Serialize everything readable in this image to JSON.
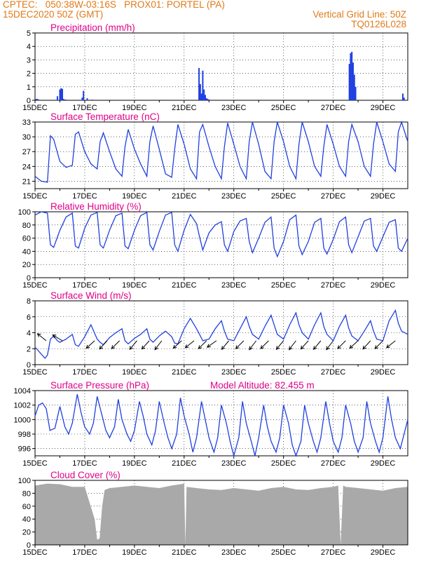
{
  "header": {
    "line1_left": "CPTEC:   050:38W-03:16S   PROX01: PORTEL (PA)",
    "line2_left": "15DEC2020 50Z (GMT)",
    "line2_right": "Vertical Grid Line: 50Z",
    "line3_right": "TQ0126L028"
  },
  "colors": {
    "header_text": "#e07a18",
    "title_text": "#e0008a",
    "series_line": "#2040e0",
    "cloud_fill": "#a9a9a9",
    "grid": "#000000"
  },
  "x_axis": {
    "day_min": 0,
    "day_max": 15,
    "tick_labels": [
      "15DEC",
      "17DEC",
      "19DEC",
      "21DEC",
      "23DEC",
      "25DEC",
      "27DEC",
      "29DEC"
    ],
    "tick_days": [
      0,
      2,
      4,
      6,
      8,
      10,
      12,
      14
    ]
  },
  "model_altitude": "Model Altitude: 82.455 m",
  "chart_data": [
    {
      "id": "precip",
      "type": "bar",
      "title": "Precipitation (mm/h)",
      "ylim": [
        0,
        5
      ],
      "yticks": [
        0,
        1,
        2,
        3,
        4,
        5
      ],
      "ytick_labels": [
        "0",
        "1",
        "2",
        "3",
        "4",
        "5"
      ],
      "x_days": [
        0.05,
        0.1,
        0.15,
        0.9,
        1.0,
        1.05,
        1.1,
        1.15,
        1.2,
        1.25,
        1.9,
        1.95,
        2.1,
        2.3,
        6.6,
        6.65,
        6.7,
        6.75,
        6.8,
        6.85,
        6.9,
        6.95,
        7.0,
        12.65,
        12.7,
        12.75,
        12.8,
        12.85,
        12.9,
        14.8,
        14.85
      ],
      "values": [
        0.1,
        0.1,
        0.05,
        0.3,
        0.8,
        0.9,
        0.85,
        0.1,
        0.05,
        0.05,
        0.2,
        0.7,
        0.15,
        0.05,
        2.4,
        1.2,
        0.5,
        2.2,
        0.8,
        0.4,
        0.15,
        0.1,
        0.05,
        2.7,
        3.5,
        3.6,
        2.8,
        1.9,
        1.0,
        0.5,
        0.2
      ]
    },
    {
      "id": "temp",
      "type": "line",
      "title": "Surface Temperature (nC)",
      "ylim": [
        19.5,
        33
      ],
      "yticks": [
        21,
        24,
        27,
        30,
        33
      ],
      "ytick_labels": [
        "21",
        "24",
        "27",
        "30",
        "33"
      ],
      "x_days": [
        0,
        0.25,
        0.5,
        0.62,
        0.75,
        1.0,
        1.25,
        1.5,
        1.62,
        1.75,
        2.0,
        2.25,
        2.5,
        2.62,
        2.75,
        3.0,
        3.25,
        3.5,
        3.62,
        3.75,
        4.0,
        4.25,
        4.5,
        4.62,
        4.75,
        5.0,
        5.25,
        5.5,
        5.62,
        5.75,
        6.0,
        6.25,
        6.5,
        6.62,
        6.75,
        7.0,
        7.25,
        7.5,
        7.62,
        7.75,
        8.0,
        8.25,
        8.5,
        8.62,
        8.75,
        9.0,
        9.25,
        9.5,
        9.62,
        9.75,
        10.0,
        10.25,
        10.5,
        10.62,
        10.75,
        11.0,
        11.25,
        11.5,
        11.62,
        11.75,
        12.0,
        12.25,
        12.5,
        12.62,
        12.75,
        13.0,
        13.25,
        13.5,
        13.62,
        13.75,
        14.0,
        14.25,
        14.5,
        14.62,
        14.75,
        15.0
      ],
      "values": [
        22,
        21,
        20.8,
        30.2,
        29.5,
        25,
        23.8,
        24.2,
        30.5,
        31,
        27,
        24.5,
        23.5,
        29,
        30.8,
        27,
        23.5,
        22,
        28,
        31.5,
        27.5,
        24.5,
        22,
        29,
        32.2,
        27.5,
        22.5,
        21.8,
        27.5,
        32.5,
        28.5,
        23.5,
        21.5,
        31,
        32.5,
        28,
        24,
        21.5,
        28,
        32.8,
        28.5,
        24,
        21.5,
        29,
        33,
        28.5,
        23,
        21.5,
        29,
        33.2,
        29,
        24,
        21.5,
        28.5,
        33.2,
        29,
        24,
        22,
        28,
        32.5,
        28.5,
        24,
        22,
        29,
        32.5,
        29,
        24,
        22,
        28.5,
        33,
        29,
        24.5,
        23,
        31,
        33.2,
        29
      ]
    },
    {
      "id": "rh",
      "type": "line",
      "title": "Relative Humidity (%)",
      "ylim": [
        0,
        100
      ],
      "yticks": [
        0,
        20,
        40,
        60,
        80,
        100
      ],
      "ytick_labels": [
        "0",
        "20",
        "40",
        "60",
        "80",
        "100"
      ],
      "x_days": [
        0,
        0.25,
        0.5,
        0.62,
        0.75,
        1.0,
        1.25,
        1.5,
        1.62,
        1.75,
        2.0,
        2.25,
        2.5,
        2.62,
        2.75,
        3.0,
        3.25,
        3.5,
        3.62,
        3.75,
        4.0,
        4.25,
        4.5,
        4.62,
        4.75,
        5.0,
        5.25,
        5.5,
        5.62,
        5.75,
        6.0,
        6.25,
        6.5,
        6.62,
        6.75,
        7.0,
        7.25,
        7.5,
        7.62,
        7.75,
        8.0,
        8.25,
        8.5,
        8.62,
        8.75,
        9.0,
        9.25,
        9.5,
        9.62,
        9.75,
        10.0,
        10.25,
        10.5,
        10.62,
        10.75,
        11.0,
        11.25,
        11.5,
        11.62,
        11.75,
        12.0,
        12.25,
        12.5,
        12.62,
        12.75,
        13.0,
        13.25,
        13.5,
        13.62,
        13.75,
        14.0,
        14.25,
        14.5,
        14.62,
        14.75,
        15.0
      ],
      "values": [
        95,
        100,
        98,
        50,
        46,
        72,
        92,
        98,
        48,
        45,
        75,
        95,
        99,
        50,
        45,
        72,
        94,
        98,
        48,
        44,
        72,
        94,
        99,
        50,
        42,
        70,
        95,
        99,
        50,
        40,
        72,
        96,
        82,
        62,
        42,
        68,
        80,
        85,
        50,
        40,
        70,
        86,
        90,
        55,
        38,
        60,
        84,
        92,
        45,
        32,
        55,
        88,
        95,
        48,
        35,
        55,
        84,
        90,
        45,
        36,
        58,
        85,
        92,
        50,
        38,
        62,
        86,
        90,
        48,
        40,
        62,
        84,
        88,
        45,
        40,
        60
      ]
    },
    {
      "id": "wind",
      "type": "line",
      "title": "Surface Wind (m/s)",
      "ylim": [
        0,
        8
      ],
      "yticks": [
        0,
        2,
        4,
        6,
        8
      ],
      "ytick_labels": [
        "0",
        "2",
        "4",
        "6",
        "8"
      ],
      "x_days": [
        0,
        0.2,
        0.4,
        0.5,
        0.62,
        0.75,
        0.9,
        1.0,
        1.25,
        1.5,
        1.62,
        1.75,
        2.0,
        2.25,
        2.5,
        2.62,
        2.75,
        3.0,
        3.25,
        3.5,
        3.62,
        3.75,
        4.0,
        4.25,
        4.5,
        4.62,
        4.75,
        5.0,
        5.25,
        5.5,
        5.62,
        5.75,
        6.0,
        6.25,
        6.5,
        6.62,
        6.75,
        7.0,
        7.25,
        7.5,
        7.62,
        7.75,
        8.0,
        8.25,
        8.5,
        8.62,
        8.75,
        9.0,
        9.25,
        9.5,
        9.62,
        9.75,
        10.0,
        10.25,
        10.5,
        10.62,
        10.75,
        11.0,
        11.25,
        11.5,
        11.62,
        11.75,
        12.0,
        12.25,
        12.5,
        12.62,
        12.75,
        13.0,
        13.25,
        13.5,
        13.62,
        13.75,
        14.0,
        14.25,
        14.5,
        14.62,
        14.75,
        15.0
      ],
      "values": [
        2.2,
        1.5,
        0.8,
        1.2,
        3.2,
        3.6,
        3.0,
        2.8,
        3.2,
        3.8,
        2.5,
        2.3,
        3.5,
        5.0,
        3.2,
        2.8,
        2.5,
        3.4,
        4.0,
        4.5,
        3.0,
        2.6,
        3.3,
        3.8,
        4.5,
        3.2,
        2.8,
        3.6,
        4.2,
        3.5,
        2.7,
        2.6,
        4.5,
        5.8,
        4.5,
        3.8,
        3.0,
        3.2,
        4.5,
        5.5,
        4.2,
        3.2,
        3.0,
        4.5,
        6.0,
        4.8,
        3.8,
        3.2,
        4.8,
        6.2,
        5.0,
        3.8,
        3.2,
        5.0,
        6.5,
        5.0,
        4.0,
        3.2,
        5.0,
        6.5,
        4.8,
        3.8,
        3.0,
        4.8,
        6.2,
        4.6,
        3.6,
        3.0,
        4.2,
        5.5,
        4.2,
        3.2,
        3.0,
        5.5,
        6.8,
        5.2,
        4.2,
        3.8
      ],
      "arrows": [
        {
          "day": 0.45,
          "dx": -1,
          "dy": -0.8
        },
        {
          "day": 1.1,
          "dx": -1,
          "dy": -0.6
        },
        {
          "day": 2.4,
          "dx": -1,
          "dy": 0.9
        },
        {
          "day": 2.9,
          "dx": -1,
          "dy": 1.1
        },
        {
          "day": 3.4,
          "dx": -1,
          "dy": 1.0
        },
        {
          "day": 4.1,
          "dx": -1,
          "dy": 1.2
        },
        {
          "day": 4.6,
          "dx": -1,
          "dy": 1.1
        },
        {
          "day": 5.1,
          "dx": -1,
          "dy": 1.3
        },
        {
          "day": 5.9,
          "dx": -1,
          "dy": 0.9
        },
        {
          "day": 6.4,
          "dx": -1,
          "dy": 0.8
        },
        {
          "day": 6.9,
          "dx": -1,
          "dy": 1.0
        },
        {
          "day": 7.3,
          "dx": -1,
          "dy": 0.7
        },
        {
          "day": 7.8,
          "dx": -1,
          "dy": 1.2
        },
        {
          "day": 8.4,
          "dx": -1,
          "dy": 1.0
        },
        {
          "day": 8.9,
          "dx": -1,
          "dy": 1.3
        },
        {
          "day": 9.4,
          "dx": -1,
          "dy": 1.0
        },
        {
          "day": 10.0,
          "dx": -1,
          "dy": 1.2
        },
        {
          "day": 10.5,
          "dx": -1,
          "dy": 1.3
        },
        {
          "day": 11.0,
          "dx": -1,
          "dy": 1.1
        },
        {
          "day": 11.5,
          "dx": -1,
          "dy": 1.2
        },
        {
          "day": 12.0,
          "dx": -1,
          "dy": 1.3
        },
        {
          "day": 12.5,
          "dx": -1,
          "dy": 1.0
        },
        {
          "day": 13.0,
          "dx": -1,
          "dy": 0.9
        },
        {
          "day": 13.5,
          "dx": -1,
          "dy": 1.1
        },
        {
          "day": 14.0,
          "dx": -1,
          "dy": 1.0
        },
        {
          "day": 14.5,
          "dx": -1,
          "dy": 0.8
        }
      ]
    },
    {
      "id": "pres",
      "type": "line",
      "title": "Surface Pressure (hPa)",
      "ylim": [
        995,
        1004
      ],
      "yticks": [
        996,
        998,
        1000,
        1002,
        1004
      ],
      "ytick_labels": [
        "996",
        "998",
        "1000",
        "1002",
        "1004"
      ],
      "x_days": [
        0,
        0.15,
        0.3,
        0.45,
        0.6,
        0.8,
        1.0,
        1.2,
        1.35,
        1.5,
        1.7,
        1.85,
        2.0,
        2.2,
        2.35,
        2.5,
        2.7,
        2.85,
        3.0,
        3.2,
        3.35,
        3.5,
        3.7,
        3.85,
        4.0,
        4.2,
        4.35,
        4.5,
        4.7,
        4.85,
        5.0,
        5.2,
        5.35,
        5.5,
        5.7,
        5.85,
        6.0,
        6.2,
        6.35,
        6.5,
        6.7,
        6.85,
        7.0,
        7.2,
        7.35,
        7.5,
        7.7,
        7.85,
        8.0,
        8.2,
        8.35,
        8.5,
        8.7,
        8.85,
        9.0,
        9.2,
        9.35,
        9.5,
        9.7,
        9.85,
        10.0,
        10.2,
        10.35,
        10.5,
        10.7,
        10.85,
        11.0,
        11.2,
        11.35,
        11.5,
        11.7,
        11.85,
        12.0,
        12.2,
        12.35,
        12.5,
        12.7,
        12.85,
        13.0,
        13.2,
        13.35,
        13.5,
        13.7,
        13.85,
        14.0,
        14.2,
        14.35,
        14.5,
        14.7,
        14.85,
        15.0
      ],
      "values": [
        1000.5,
        1002,
        1002.3,
        1001.5,
        998.5,
        998.8,
        1001.8,
        999.0,
        998.0,
        999.5,
        1003.5,
        1001.0,
        999.0,
        998.0,
        999.5,
        1003.2,
        1000.5,
        998.5,
        997.5,
        999.0,
        1002.8,
        1000.0,
        998.0,
        997.0,
        998.5,
        1002.5,
        1000.5,
        998.0,
        996.5,
        998.5,
        1002.5,
        999.5,
        997.5,
        996.0,
        998.0,
        1003.0,
        1000.5,
        998.0,
        995.5,
        997.5,
        1002.5,
        1000.0,
        997.5,
        995.5,
        997.5,
        1002.0,
        999.5,
        997.0,
        995.0,
        997.5,
        1002.5,
        999.5,
        997.0,
        995.0,
        997.5,
        1002.0,
        999.0,
        997.0,
        995.5,
        997.5,
        1002.0,
        999.5,
        996.5,
        995.0,
        997.0,
        1002.0,
        999.5,
        997.0,
        995.5,
        997.5,
        1002.5,
        999.5,
        997.0,
        995.5,
        997.5,
        1002.0,
        999.5,
        997.0,
        995.5,
        997.5,
        1002.5,
        999.5,
        997.0,
        995.5,
        997.5,
        1003.2,
        1000.0,
        997.5,
        996.0,
        998.0,
        1000.0
      ]
    },
    {
      "id": "cloud",
      "type": "area",
      "title": "Cloud Cover (%)",
      "ylim": [
        0,
        100
      ],
      "yticks": [
        0,
        20,
        40,
        60,
        80,
        100
      ],
      "ytick_labels": [
        "0",
        "20",
        "40",
        "60",
        "80",
        "100"
      ],
      "x_days": [
        0,
        0.5,
        1.0,
        1.5,
        2.0,
        2.4,
        2.5,
        2.6,
        2.7,
        2.8,
        3.0,
        3.5,
        4.0,
        4.5,
        5.0,
        5.5,
        6.0,
        6.05,
        6.1,
        6.5,
        7.0,
        7.5,
        8.0,
        8.5,
        9.0,
        9.5,
        10.0,
        10.5,
        11.0,
        11.5,
        12.0,
        12.2,
        12.3,
        12.4,
        12.5,
        13.0,
        13.5,
        14.0,
        14.5,
        15.0
      ],
      "values": [
        92,
        95,
        94,
        90,
        90,
        40,
        8,
        10,
        60,
        85,
        88,
        90,
        92,
        90,
        88,
        92,
        95,
        0,
        90,
        88,
        86,
        85,
        88,
        86,
        84,
        88,
        90,
        86,
        85,
        88,
        90,
        92,
        0,
        92,
        90,
        88,
        86,
        84,
        88,
        90
      ]
    }
  ]
}
